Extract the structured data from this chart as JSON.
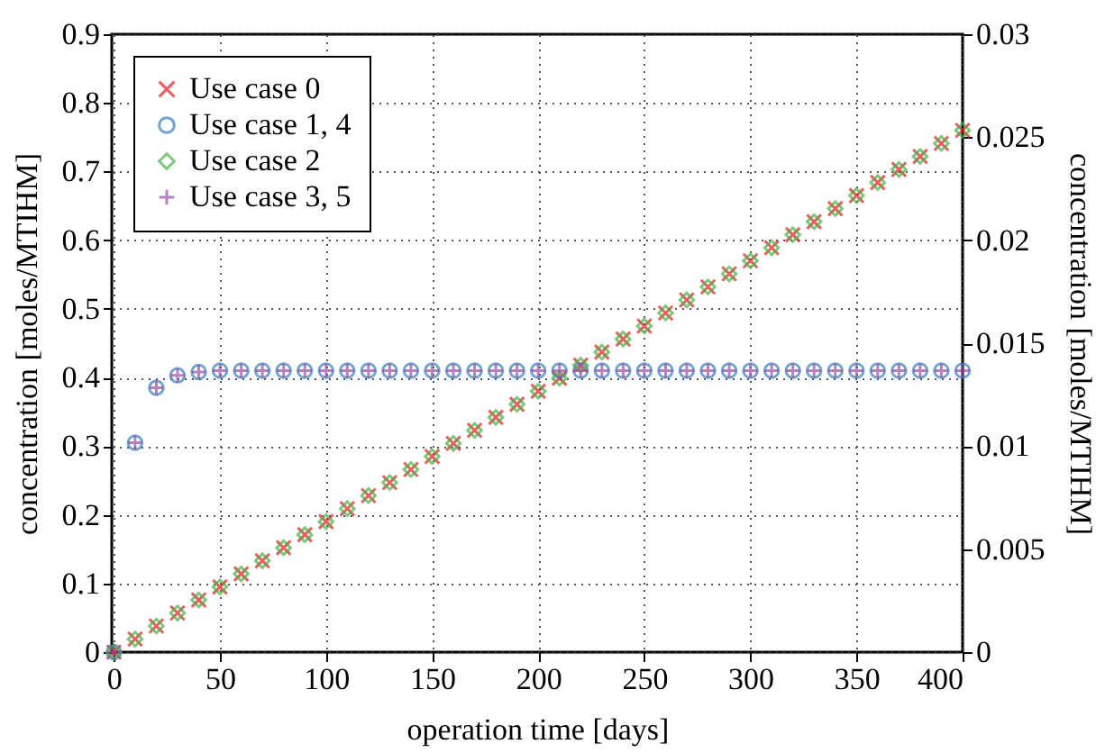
{
  "chart_data": {
    "type": "scatter",
    "xlabel": "operation time [days]",
    "ylabel": "concentration [moles/MTIHM]",
    "y2label": "concentration [moles/MTIHM]",
    "x": [
      0,
      10,
      20,
      30,
      40,
      50,
      60,
      70,
      80,
      90,
      100,
      110,
      120,
      130,
      140,
      150,
      160,
      170,
      180,
      190,
      200,
      210,
      220,
      230,
      240,
      250,
      260,
      270,
      280,
      290,
      300,
      310,
      320,
      330,
      340,
      350,
      360,
      370,
      380,
      390,
      400
    ],
    "series": [
      {
        "name": "Use case 0",
        "color": "#e41a1c",
        "marker": "cross",
        "values": [
          0,
          0.019,
          0.038,
          0.057,
          0.076,
          0.095,
          0.114,
          0.133,
          0.152,
          0.171,
          0.19,
          0.209,
          0.228,
          0.247,
          0.266,
          0.285,
          0.304,
          0.323,
          0.342,
          0.361,
          0.38,
          0.399,
          0.418,
          0.437,
          0.456,
          0.475,
          0.494,
          0.513,
          0.532,
          0.551,
          0.57,
          0.589,
          0.608,
          0.627,
          0.646,
          0.665,
          0.684,
          0.703,
          0.722,
          0.741,
          0.76
        ]
      },
      {
        "name": "Use case 1, 4",
        "color": "#377eb8",
        "marker": "circle",
        "values": [
          0,
          0.305,
          0.385,
          0.403,
          0.408,
          0.41,
          0.41,
          0.41,
          0.41,
          0.41,
          0.41,
          0.41,
          0.41,
          0.41,
          0.41,
          0.41,
          0.41,
          0.41,
          0.41,
          0.41,
          0.41,
          0.41,
          0.41,
          0.41,
          0.41,
          0.41,
          0.41,
          0.41,
          0.41,
          0.41,
          0.41,
          0.41,
          0.41,
          0.41,
          0.41,
          0.41,
          0.41,
          0.41,
          0.41,
          0.41,
          0.41
        ]
      },
      {
        "name": "Use case 2",
        "color": "#4daf4a",
        "marker": "diamond",
        "values": [
          0,
          0.019,
          0.038,
          0.057,
          0.076,
          0.095,
          0.114,
          0.133,
          0.152,
          0.171,
          0.19,
          0.209,
          0.228,
          0.247,
          0.266,
          0.285,
          0.304,
          0.323,
          0.342,
          0.361,
          0.38,
          0.399,
          0.418,
          0.437,
          0.456,
          0.475,
          0.494,
          0.513,
          0.532,
          0.551,
          0.57,
          0.589,
          0.608,
          0.627,
          0.646,
          0.665,
          0.684,
          0.703,
          0.722,
          0.741,
          0.76
        ]
      },
      {
        "name": "Use case 3, 5",
        "color": "#984ea3",
        "marker": "plus",
        "values": [
          0,
          0.305,
          0.385,
          0.403,
          0.408,
          0.41,
          0.41,
          0.41,
          0.41,
          0.41,
          0.41,
          0.41,
          0.41,
          0.41,
          0.41,
          0.41,
          0.41,
          0.41,
          0.41,
          0.41,
          0.41,
          0.41,
          0.41,
          0.41,
          0.41,
          0.41,
          0.41,
          0.41,
          0.41,
          0.41,
          0.41,
          0.41,
          0.41,
          0.41,
          0.41,
          0.41,
          0.41,
          0.41,
          0.41,
          0.41,
          0.41
        ]
      }
    ],
    "xlim": [
      -1,
      400
    ],
    "xticks": [
      0,
      50,
      100,
      150,
      200,
      250,
      300,
      350,
      400
    ],
    "ylim": [
      0,
      0.9
    ],
    "yticks": [
      0,
      0.1,
      0.2,
      0.3,
      0.4,
      0.5,
      0.6,
      0.7,
      0.8,
      0.9
    ],
    "y2lim": [
      0,
      0.03
    ],
    "y2ticks": [
      0,
      0.005,
      0.01,
      0.015,
      0.02,
      0.025,
      0.03
    ],
    "grid": true,
    "legend": "top left"
  }
}
